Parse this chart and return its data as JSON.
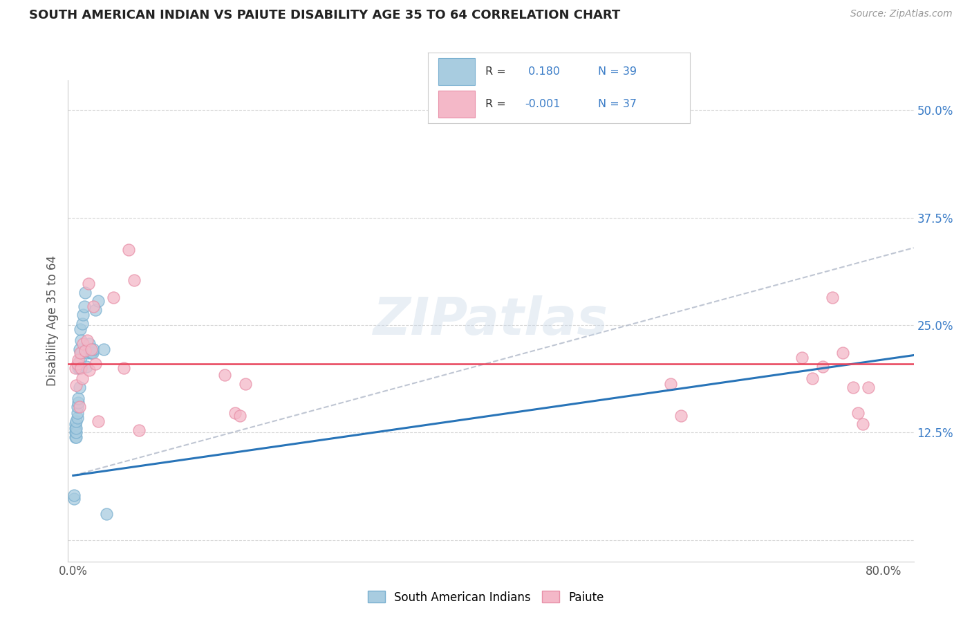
{
  "title": "SOUTH AMERICAN INDIAN VS PAIUTE DISABILITY AGE 35 TO 64 CORRELATION CHART",
  "source": "Source: ZipAtlas.com",
  "ylabel": "Disability Age 35 to 64",
  "xmin": -0.005,
  "xmax": 0.83,
  "ymin": -0.025,
  "ymax": 0.535,
  "ylabel_ticks": [
    0.0,
    0.125,
    0.25,
    0.375,
    0.5
  ],
  "ylabel_labels": [
    "",
    "12.5%",
    "25.0%",
    "37.5%",
    "50.0%"
  ],
  "color_blue": "#a8cce0",
  "color_pink": "#f4b8c8",
  "color_blue_edge": "#7ab0d0",
  "color_pink_edge": "#e890a8",
  "color_blue_line": "#2874b8",
  "color_pink_line": "#e8435a",
  "color_dash_line": "#b0b8c8",
  "watermark": "ZIPatlas",
  "legend_label1": "South American Indians",
  "legend_label2": "Paiute",
  "legend_r1_text": "R = ",
  "legend_r1_val": "0.180",
  "legend_n1": "N = 39",
  "legend_r2_text": "R = ",
  "legend_r2_val": "-0.001",
  "legend_n2": "N = 37",
  "grid_color": "#cccccc",
  "bg_color": "#ffffff",
  "blue_x": [
    0.001,
    0.001,
    0.002,
    0.002,
    0.002,
    0.002,
    0.003,
    0.003,
    0.003,
    0.003,
    0.004,
    0.004,
    0.004,
    0.005,
    0.005,
    0.005,
    0.006,
    0.006,
    0.006,
    0.007,
    0.007,
    0.008,
    0.008,
    0.009,
    0.01,
    0.011,
    0.012,
    0.013,
    0.014,
    0.015,
    0.016,
    0.017,
    0.018,
    0.019,
    0.02,
    0.022,
    0.025,
    0.03,
    0.033
  ],
  "blue_y": [
    0.048,
    0.052,
    0.12,
    0.125,
    0.13,
    0.135,
    0.12,
    0.125,
    0.13,
    0.138,
    0.142,
    0.148,
    0.155,
    0.16,
    0.165,
    0.2,
    0.178,
    0.2,
    0.222,
    0.21,
    0.245,
    0.232,
    0.218,
    0.252,
    0.262,
    0.272,
    0.288,
    0.202,
    0.218,
    0.222,
    0.228,
    0.218,
    0.218,
    0.218,
    0.222,
    0.268,
    0.278,
    0.222,
    0.03
  ],
  "pink_x": [
    0.002,
    0.003,
    0.004,
    0.005,
    0.006,
    0.007,
    0.008,
    0.009,
    0.01,
    0.012,
    0.014,
    0.015,
    0.016,
    0.018,
    0.02,
    0.022,
    0.025,
    0.04,
    0.05,
    0.055,
    0.06,
    0.065,
    0.15,
    0.16,
    0.165,
    0.17,
    0.59,
    0.6,
    0.72,
    0.73,
    0.74,
    0.75,
    0.76,
    0.77,
    0.775,
    0.78,
    0.785
  ],
  "pink_y": [
    0.2,
    0.18,
    0.205,
    0.21,
    0.155,
    0.218,
    0.2,
    0.188,
    0.228,
    0.22,
    0.232,
    0.298,
    0.198,
    0.222,
    0.272,
    0.205,
    0.138,
    0.282,
    0.2,
    0.338,
    0.302,
    0.128,
    0.192,
    0.148,
    0.145,
    0.182,
    0.182,
    0.145,
    0.212,
    0.188,
    0.202,
    0.282,
    0.218,
    0.178,
    0.148,
    0.135,
    0.178
  ],
  "blue_trend_x0": 0.0,
  "blue_trend_y0": 0.075,
  "blue_trend_x1": 0.83,
  "blue_trend_y1": 0.215,
  "dash_trend_x0": 0.0,
  "dash_trend_y0": 0.075,
  "dash_trend_x1": 0.83,
  "dash_trend_y1": 0.34,
  "pink_trend_y": 0.205
}
